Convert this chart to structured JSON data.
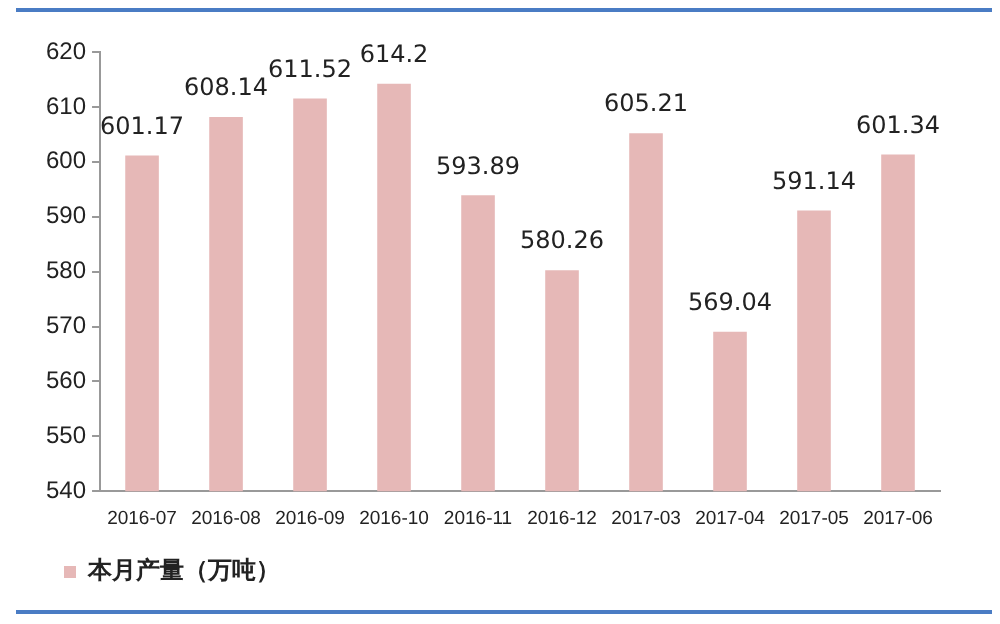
{
  "chart_data": {
    "type": "bar",
    "categories": [
      "2016-07",
      "2016-08",
      "2016-09",
      "2016-10",
      "2016-11",
      "2016-12",
      "2017-03",
      "2017-04",
      "2017-05",
      "2017-06"
    ],
    "series": [
      {
        "name": "本月产量（万吨）",
        "color": "#e6b8b7",
        "values": [
          601.17,
          608.14,
          611.52,
          614.2,
          593.89,
          580.26,
          605.21,
          569.04,
          591.14,
          601.34
        ]
      }
    ],
    "ylim": [
      540,
      620
    ],
    "yticks": [
      540,
      550,
      560,
      570,
      580,
      590,
      600,
      610,
      620
    ],
    "grid": false,
    "legend": "bottom",
    "data_labels": true
  }
}
